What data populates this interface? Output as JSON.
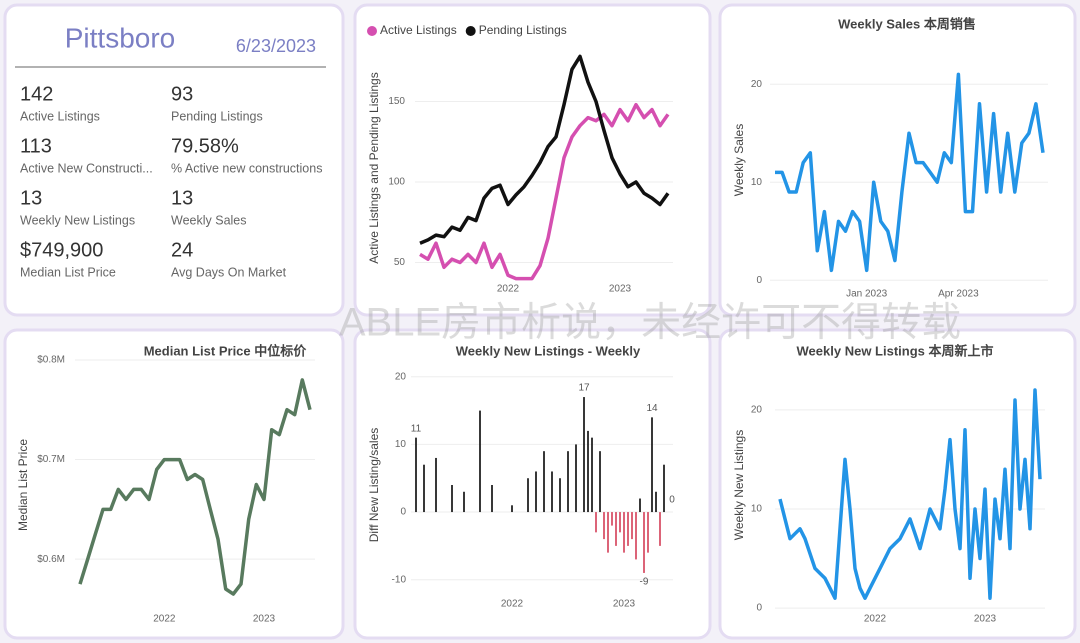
{
  "card": {
    "title": "Pittsboro",
    "date": "6/23/2023",
    "items": [
      {
        "value": "142",
        "label": "Active Listings"
      },
      {
        "value": "93",
        "label": "Pending Listings"
      },
      {
        "value": "113",
        "label": "Active New Constructi..."
      },
      {
        "value": "79.58%",
        "label": "% Active new constructions"
      },
      {
        "value": "13",
        "label": "Weekly New Listings"
      },
      {
        "value": "13",
        "label": "Weekly Sales"
      },
      {
        "value": "$749,900",
        "label": "Median List Price"
      },
      {
        "value": "24",
        "label": "Avg Days On Market"
      }
    ]
  },
  "watermark": "ABLE房市析说，未经许可不得转载",
  "chart_data": [
    {
      "type": "line",
      "y_label": "Active Listings and Pending Listings",
      "categories": [
        null,
        null,
        null,
        null,
        null,
        null,
        null,
        null,
        null,
        null,
        null,
        "2022",
        null,
        null,
        null,
        null,
        null,
        null,
        null,
        null,
        null,
        null,
        null,
        null,
        null,
        "2023",
        null,
        null,
        null,
        null,
        null,
        null
      ],
      "series": [
        {
          "name": "Active Listings",
          "color": "#d54fb0",
          "values": [
            55,
            52,
            62,
            47,
            52,
            50,
            55,
            50,
            62,
            47,
            55,
            42,
            40,
            40,
            40,
            48,
            65,
            90,
            115,
            128,
            135,
            140,
            138,
            142,
            135,
            145,
            138,
            148,
            140,
            145,
            135,
            142
          ]
        },
        {
          "name": "Pending Listings",
          "color": "#111111",
          "values": [
            62,
            64,
            67,
            66,
            72,
            70,
            78,
            76,
            90,
            96,
            98,
            86,
            92,
            97,
            104,
            112,
            122,
            128,
            148,
            170,
            178,
            162,
            150,
            132,
            115,
            105,
            97,
            100,
            93,
            90,
            86,
            93
          ]
        }
      ],
      "ylim": [
        36,
        182
      ],
      "yticks": [
        50,
        100,
        150
      ],
      "grid": true,
      "legend": "top-left"
    },
    {
      "type": "line",
      "title": "Weekly Sales 本周销售",
      "y_label": "Weekly Sales",
      "categories": [
        null,
        null,
        null,
        null,
        null,
        null,
        null,
        null,
        null,
        null,
        null,
        null,
        null,
        "Jan 2023",
        null,
        null,
        null,
        null,
        null,
        null,
        null,
        null,
        null,
        null,
        null,
        null,
        "Apr 2023",
        null,
        null,
        null,
        null,
        null,
        null,
        null,
        null,
        null,
        null,
        null,
        null
      ],
      "series": [
        {
          "name": "Weekly Sales",
          "color": "#2394e6",
          "values": [
            11,
            11,
            9,
            9,
            12,
            13,
            3,
            7,
            1,
            6,
            5,
            7,
            6,
            1,
            10,
            6,
            5,
            2,
            9,
            15,
            12,
            12,
            11,
            10,
            13,
            12,
            21,
            7,
            7,
            18,
            9,
            17,
            9,
            15,
            9,
            14,
            15,
            18,
            13
          ]
        }
      ],
      "ylim": [
        -1,
        24
      ],
      "yticks": [
        0,
        10,
        20
      ],
      "grid": true
    },
    {
      "type": "line",
      "title": "Median List Price  中位标价",
      "y_label": "Median List Price",
      "categories": [
        null,
        null,
        null,
        null,
        null,
        null,
        null,
        null,
        null,
        null,
        null,
        "2022",
        null,
        null,
        null,
        null,
        null,
        null,
        null,
        null,
        null,
        null,
        null,
        null,
        "2023",
        null,
        null,
        null,
        null,
        null,
        null
      ],
      "series": [
        {
          "name": "Median List Price",
          "color": "#587a5e",
          "values": [
            575000,
            600000,
            625000,
            650000,
            650000,
            670000,
            660000,
            670000,
            670000,
            660000,
            690000,
            700000,
            700000,
            700000,
            680000,
            685000,
            680000,
            650000,
            620000,
            570000,
            565000,
            575000,
            640000,
            675000,
            660000,
            730000,
            725000,
            750000,
            745000,
            780000,
            750000
          ]
        }
      ],
      "ylim": [
        559000,
        815000
      ],
      "yticks": [
        {
          "value": 600000,
          "label": "$0.6M"
        },
        {
          "value": 700000,
          "label": "$0.7M"
        },
        {
          "value": 800000,
          "label": "$0.8M"
        }
      ],
      "grid": true
    },
    {
      "type": "bar",
      "title": "Weekly New Listings - Weekly",
      "y_label": "Diff New Listing/sales",
      "categories": [
        null,
        null,
        null,
        null,
        null,
        null,
        null,
        null,
        null,
        null,
        null,
        null,
        null,
        null,
        null,
        null,
        null,
        null,
        null,
        null,
        null,
        null,
        null,
        null,
        "2022",
        null,
        null,
        null,
        null,
        null,
        null,
        null,
        null,
        null,
        null,
        null,
        null,
        null,
        null,
        null,
        null,
        null,
        null,
        null,
        null,
        null,
        null,
        null,
        null,
        null,
        null,
        null,
        "2023",
        null,
        null,
        null,
        null,
        null,
        null,
        null,
        null,
        null,
        null,
        null
      ],
      "values": [
        11,
        0,
        7,
        0,
        0,
        8,
        0,
        0,
        0,
        4,
        0,
        0,
        3,
        0,
        0,
        0,
        15,
        0,
        0,
        4,
        0,
        0,
        0,
        0,
        1,
        0,
        0,
        0,
        5,
        0,
        6,
        0,
        9,
        0,
        6,
        0,
        5,
        0,
        9,
        0,
        10,
        0,
        17,
        12,
        11,
        -3,
        9,
        -4,
        -6,
        -2,
        -5,
        -3,
        -6,
        -5,
        -4,
        -7,
        2,
        -9,
        -6,
        14,
        3,
        -5,
        7,
        0
      ],
      "value_labels": [
        11,
        null,
        null,
        null,
        null,
        null,
        null,
        null,
        null,
        null,
        null,
        null,
        null,
        null,
        null,
        null,
        null,
        null,
        null,
        null,
        null,
        null,
        null,
        null,
        null,
        null,
        null,
        null,
        null,
        null,
        null,
        null,
        null,
        null,
        null,
        null,
        null,
        null,
        null,
        null,
        null,
        null,
        17,
        null,
        null,
        null,
        null,
        null,
        null,
        null,
        null,
        null,
        null,
        null,
        null,
        null,
        null,
        -9,
        null,
        14,
        null,
        null,
        null,
        0
      ],
      "color_positive": "#222222",
      "color_negative": "#d9546a",
      "ylim": [
        -13,
        21
      ],
      "yticks": [
        -10,
        0,
        10,
        20
      ],
      "grid": true
    },
    {
      "type": "line",
      "title": "Weekly New Listings  本周新上市",
      "y_label": "Weekly New Listings",
      "categories": [
        null,
        null,
        null,
        null,
        null,
        null,
        null,
        null,
        null,
        null,
        null,
        null,
        null,
        null,
        null,
        null,
        null,
        null,
        null,
        "2022",
        null,
        null,
        null,
        null,
        null,
        null,
        null,
        null,
        null,
        null,
        null,
        null,
        null,
        null,
        null,
        null,
        null,
        null,
        null,
        null,
        null,
        "2023",
        null,
        null,
        null,
        null,
        null,
        null,
        null,
        null,
        null,
        null,
        null
      ],
      "series": [
        {
          "name": "Weekly New Listings",
          "color": "#2394e6",
          "values": [
            11,
            9,
            7,
            7.5,
            8,
            7,
            5.5,
            4,
            3.5,
            3,
            2,
            1,
            8,
            15,
            10,
            4,
            2,
            1,
            2,
            3,
            4,
            5,
            6,
            6.5,
            7,
            8,
            9,
            7.5,
            6,
            8,
            10,
            9,
            8,
            12,
            17,
            10,
            6,
            18,
            3,
            10,
            5,
            12,
            1,
            11,
            7,
            14,
            6,
            21,
            10,
            15,
            8,
            22,
            13
          ]
        }
      ],
      "ylim": [
        -0.7,
        21.5
      ],
      "yticks": [
        0,
        10,
        20
      ],
      "grid": true
    }
  ]
}
